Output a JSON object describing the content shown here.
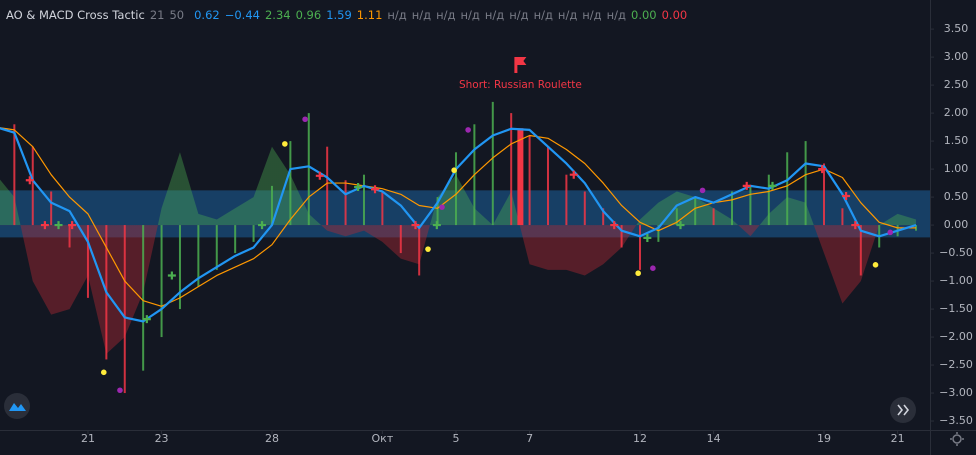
{
  "chart_data": {
    "type": "indicator",
    "title": "AO & MACD Cross Tactic",
    "params": [
      21,
      50
    ],
    "legend_values": [
      {
        "value": 0.62,
        "color": "#2196f3"
      },
      {
        "value": -0.44,
        "label": "−0.44",
        "color": "#2196f3"
      },
      {
        "value": 2.34,
        "color": "#4caf50"
      },
      {
        "value": 0.96,
        "color": "#4caf50"
      },
      {
        "value": 1.59,
        "color": "#2196f3"
      },
      {
        "value": 1.11,
        "color": "#ff9800"
      },
      {
        "label": "н/д",
        "color": "#787b86"
      },
      {
        "label": "н/д",
        "color": "#787b86"
      },
      {
        "label": "н/д",
        "color": "#787b86"
      },
      {
        "label": "н/д",
        "color": "#787b86"
      },
      {
        "label": "н/д",
        "color": "#787b86"
      },
      {
        "label": "н/д",
        "color": "#787b86"
      },
      {
        "label": "н/д",
        "color": "#787b86"
      },
      {
        "label": "н/д",
        "color": "#787b86"
      },
      {
        "label": "н/д",
        "color": "#787b86"
      },
      {
        "label": "н/д",
        "color": "#787b86"
      },
      {
        "value": 0,
        "label": "0.00",
        "color": "#4caf50"
      },
      {
        "value": 0,
        "label": "0.00",
        "color": "#f23645"
      }
    ],
    "x": [
      -2.5,
      -2,
      -1.5,
      -1,
      -0.5,
      0,
      0.5,
      1,
      1.5,
      2,
      2.5,
      3,
      3.5,
      4,
      4.5,
      5,
      5.5,
      6,
      6.5,
      7,
      7.5,
      8,
      8.5,
      9,
      9.5,
      10,
      10.5,
      11,
      11.5,
      12,
      12.5,
      13,
      13.5,
      14,
      14.5,
      15,
      15.5,
      16,
      16.5,
      17,
      17.5,
      18,
      18.5,
      19,
      19.5,
      20,
      20.5,
      21,
      21.5,
      22,
      22.5
    ],
    "xlim": [
      -2.39,
      22.88
    ],
    "xticks": [
      {
        "value": 0,
        "label": "21"
      },
      {
        "value": 2,
        "label": "23"
      },
      {
        "value": 5,
        "label": "28"
      },
      {
        "value": 8,
        "label": "Окт"
      },
      {
        "value": 10,
        "label": "5"
      },
      {
        "value": 12,
        "label": "7"
      },
      {
        "value": 15,
        "label": "12"
      },
      {
        "value": 17,
        "label": "14"
      },
      {
        "value": 20,
        "label": "19"
      },
      {
        "value": 22,
        "label": "21"
      }
    ],
    "ylim": [
      -3.66,
      4.02
    ],
    "yticks": [
      {
        "value": 3.5,
        "label": "3.50"
      },
      {
        "value": 3,
        "label": "3.00"
      },
      {
        "value": 2.5,
        "label": "2.50"
      },
      {
        "value": 2,
        "label": "2.00"
      },
      {
        "value": 1.5,
        "label": "1.50"
      },
      {
        "value": 1,
        "label": "1.00"
      },
      {
        "value": 0.5,
        "label": "0.50"
      },
      {
        "value": 0,
        "label": "0.00"
      },
      {
        "value": -0.5,
        "label": "−0.50"
      },
      {
        "value": -1,
        "label": "−1.00"
      },
      {
        "value": -1.5,
        "label": "−1.50"
      },
      {
        "value": -2,
        "label": "−2.00"
      },
      {
        "value": -2.5,
        "label": "−2.50"
      },
      {
        "value": -3,
        "label": "−3.00"
      },
      {
        "value": -3.5,
        "label": "−3.50"
      }
    ],
    "grid": false,
    "band": {
      "upper": 0.62,
      "lower": -0.22,
      "color": "rgba(33,150,243,0.32)"
    },
    "ao": {
      "up_color": "rgba(76,175,80,0.38)",
      "down_color": "rgba(178,40,51,0.42)",
      "values": [
        0.9,
        0.5,
        -1.0,
        -1.6,
        -1.5,
        -0.9,
        -2.3,
        -2.0,
        -1.2,
        0.3,
        1.3,
        0.2,
        0.1,
        0.3,
        0.5,
        1.4,
        0.9,
        0.2,
        -0.1,
        -0.2,
        -0.1,
        -0.3,
        -0.6,
        -0.7,
        0.5,
        0.9,
        0.3,
        0.0,
        0.6,
        -0.7,
        -0.8,
        -0.8,
        -0.9,
        -0.7,
        -0.4,
        0.1,
        0.4,
        0.6,
        0.5,
        0.3,
        0.1,
        -0.2,
        0.2,
        0.5,
        0.4,
        -0.5,
        -1.4,
        -1.0,
        0.0,
        0.2,
        0.1
      ]
    },
    "histogram": {
      "up_color": "#4caf50",
      "down_color": "#f23645",
      "values": [
        2.1,
        1.8,
        1.4,
        0.6,
        -0.4,
        -1.3,
        -2.4,
        -3.0,
        -2.6,
        -2.0,
        -1.5,
        -1.1,
        -0.8,
        -0.5,
        -0.3,
        0.7,
        1.5,
        2.0,
        1.4,
        0.8,
        0.9,
        0.6,
        -0.5,
        -0.9,
        0.5,
        1.3,
        1.8,
        2.2,
        2.0,
        1.6,
        1.4,
        0.9,
        0.6,
        0.3,
        -0.4,
        -0.8,
        -0.3,
        0.3,
        0.5,
        0.3,
        0.6,
        0.7,
        0.9,
        1.3,
        1.5,
        1.1,
        0.3,
        -0.9,
        -0.4,
        -0.2,
        -0.1
      ]
    },
    "fast_line": {
      "color": "#2196f3",
      "values": [
        1.75,
        1.65,
        0.8,
        0.4,
        0.25,
        -0.3,
        -1.2,
        -1.65,
        -1.72,
        -1.5,
        -1.2,
        -0.95,
        -0.75,
        -0.55,
        -0.4,
        0.0,
        1.0,
        1.05,
        0.85,
        0.55,
        0.7,
        0.6,
        0.35,
        -0.05,
        0.4,
        1.0,
        1.35,
        1.6,
        1.72,
        1.7,
        1.4,
        1.1,
        0.75,
        0.25,
        -0.1,
        -0.2,
        -0.05,
        0.35,
        0.5,
        0.4,
        0.55,
        0.7,
        0.65,
        0.8,
        1.1,
        1.05,
        0.55,
        -0.1,
        -0.2,
        -0.1,
        0.0
      ]
    },
    "slow_line": {
      "color": "#ff9800",
      "values": [
        1.75,
        1.7,
        1.4,
        0.9,
        0.5,
        0.2,
        -0.4,
        -1.0,
        -1.35,
        -1.45,
        -1.3,
        -1.1,
        -0.9,
        -0.75,
        -0.6,
        -0.35,
        0.1,
        0.5,
        0.75,
        0.75,
        0.7,
        0.65,
        0.55,
        0.35,
        0.3,
        0.55,
        0.9,
        1.2,
        1.45,
        1.6,
        1.55,
        1.35,
        1.1,
        0.75,
        0.35,
        0.05,
        -0.1,
        0.05,
        0.3,
        0.4,
        0.45,
        0.55,
        0.6,
        0.7,
        0.9,
        1.0,
        0.85,
        0.4,
        0.05,
        -0.05,
        -0.05
      ]
    },
    "markers": [
      {
        "x": -1.58,
        "value": 0.8,
        "shape": "cross",
        "color": "#f23645"
      },
      {
        "x": -1.17,
        "value": 0,
        "shape": "cross",
        "color": "#f23645"
      },
      {
        "x": -0.43,
        "value": 0,
        "shape": "cross",
        "color": "#f23645"
      },
      {
        "x": 6.3,
        "value": 0.88,
        "shape": "cross",
        "color": "#f23645"
      },
      {
        "x": 7.8,
        "value": 0.64,
        "shape": "cross",
        "color": "#f23645"
      },
      {
        "x": 8.9,
        "value": 0,
        "shape": "cross",
        "color": "#f23645"
      },
      {
        "x": 13.2,
        "value": 0.9,
        "shape": "cross",
        "color": "#f23645"
      },
      {
        "x": 14.3,
        "value": 0,
        "shape": "cross",
        "color": "#f23645"
      },
      {
        "x": 17.9,
        "value": 0.7,
        "shape": "cross",
        "color": "#f23645"
      },
      {
        "x": 19.95,
        "value": 1.0,
        "shape": "cross",
        "color": "#f23645"
      },
      {
        "x": 20.6,
        "value": 0.52,
        "shape": "cross",
        "color": "#f23645"
      },
      {
        "x": 20.85,
        "value": 0,
        "shape": "cross",
        "color": "#f23645"
      },
      {
        "x": -0.8,
        "value": 0,
        "shape": "cross",
        "color": "#4caf50"
      },
      {
        "x": 1.6,
        "value": -1.68,
        "shape": "cross",
        "color": "#4caf50"
      },
      {
        "x": 2.28,
        "value": -0.9,
        "shape": "cross",
        "color": "#4caf50"
      },
      {
        "x": 4.73,
        "value": 0,
        "shape": "cross",
        "color": "#4caf50"
      },
      {
        "x": 7.34,
        "value": 0.68,
        "shape": "cross",
        "color": "#4caf50"
      },
      {
        "x": 9.48,
        "value": 0,
        "shape": "cross",
        "color": "#4caf50"
      },
      {
        "x": 15.2,
        "value": -0.23,
        "shape": "cross",
        "color": "#4caf50"
      },
      {
        "x": 16.1,
        "value": 0,
        "shape": "cross",
        "color": "#4caf50"
      },
      {
        "x": 18.6,
        "value": 0.7,
        "shape": "cross",
        "color": "#4caf50"
      },
      {
        "x": 0.43,
        "value": -2.63,
        "shape": "dot",
        "color": "#ffeb3b"
      },
      {
        "x": 5.35,
        "value": 1.45,
        "shape": "dot",
        "color": "#ffeb3b"
      },
      {
        "x": 9.24,
        "value": -0.43,
        "shape": "dot",
        "color": "#ffeb3b"
      },
      {
        "x": 9.95,
        "value": 0.98,
        "shape": "dot",
        "color": "#ffeb3b"
      },
      {
        "x": 14.95,
        "value": -0.86,
        "shape": "dot",
        "color": "#ffeb3b"
      },
      {
        "x": 21.4,
        "value": -0.71,
        "shape": "dot",
        "color": "#ffeb3b"
      },
      {
        "x": 0.87,
        "value": -2.95,
        "shape": "dot",
        "color": "#9c27b0"
      },
      {
        "x": 5.9,
        "value": 1.89,
        "shape": "dot",
        "color": "#9c27b0"
      },
      {
        "x": 9.62,
        "value": 0.32,
        "shape": "dot",
        "color": "#9c27b0"
      },
      {
        "x": 10.33,
        "value": 1.7,
        "shape": "dot",
        "color": "#9c27b0"
      },
      {
        "x": 15.35,
        "value": -0.77,
        "shape": "dot",
        "color": "#9c27b0"
      },
      {
        "x": 16.7,
        "value": 0.62,
        "shape": "dot",
        "color": "#9c27b0"
      },
      {
        "x": 21.8,
        "value": -0.13,
        "shape": "dot",
        "color": "#9c27b0"
      }
    ],
    "signal": {
      "x": 11.75,
      "value": 1.73,
      "label": "Short: Russian Roulette",
      "color": "#f23645"
    }
  }
}
